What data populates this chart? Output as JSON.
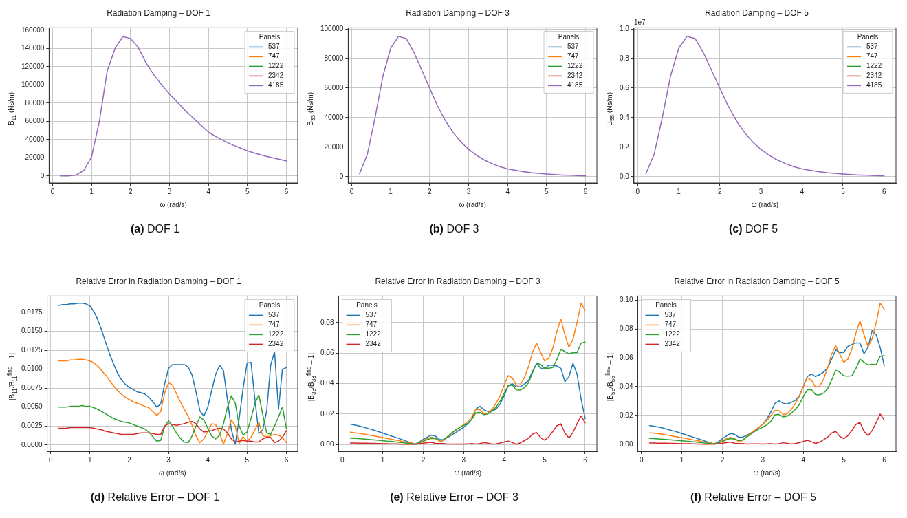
{
  "chart_data": [
    {
      "type": "line",
      "title": "Radiation Damping – DOF 1",
      "xlabel": "ω (rad/s)",
      "ylabel": "B$_{11}$ (Ns/m)",
      "legend_title": "Panels",
      "legend": "top right",
      "grid": true,
      "xlim": [
        -0.09,
        6.29
      ],
      "xticks": [
        0,
        1,
        2,
        3,
        4,
        5,
        6
      ],
      "ylim": [
        -7700,
        162700
      ],
      "yticks": [
        0,
        20000,
        40000,
        60000,
        80000,
        100000,
        120000,
        140000,
        160000
      ],
      "annotations": [
        "(a) DOF 1"
      ],
      "x": [
        0.2,
        0.4,
        0.6,
        0.8,
        1.0,
        1.2,
        1.4,
        1.6,
        1.8,
        2.0,
        2.2,
        2.4,
        2.6,
        2.8,
        3.0,
        3.2,
        3.4,
        3.6,
        3.8,
        4.0,
        4.2,
        4.4,
        4.6,
        4.8,
        5.0,
        5.2,
        5.4,
        5.6,
        5.8,
        6.0
      ],
      "series": [
        {
          "name": "537",
          "color": "#1f77b4",
          "values": [
            null,
            null,
            null,
            null,
            null,
            null,
            null,
            null,
            null,
            null,
            null,
            null,
            null,
            null,
            null,
            null,
            null,
            null,
            null,
            null,
            null,
            null,
            null,
            null,
            null,
            null,
            null,
            null,
            null,
            null
          ]
        },
        {
          "name": "747",
          "color": "#ff7f0e",
          "values": [
            null,
            null,
            null,
            null,
            null,
            null,
            null,
            null,
            null,
            null,
            null,
            null,
            null,
            null,
            null,
            null,
            null,
            null,
            null,
            null,
            null,
            null,
            null,
            null,
            null,
            null,
            null,
            null,
            null,
            null
          ]
        },
        {
          "name": "1222",
          "color": "#2ca02c",
          "values": [
            null,
            null,
            null,
            null,
            null,
            null,
            null,
            null,
            null,
            null,
            null,
            null,
            null,
            null,
            null,
            null,
            null,
            null,
            null,
            null,
            null,
            null,
            null,
            null,
            null,
            null,
            null,
            null,
            null,
            null
          ]
        },
        {
          "name": "2342",
          "color": "#d62728",
          "values": [
            null,
            null,
            null,
            null,
            null,
            null,
            null,
            null,
            null,
            null,
            null,
            null,
            null,
            null,
            null,
            null,
            null,
            null,
            null,
            null,
            null,
            null,
            null,
            null,
            null,
            null,
            null,
            null,
            null,
            null
          ]
        },
        {
          "name": "4185",
          "color": "#9467bd",
          "values": [
            0,
            100,
            1000,
            6000,
            21000,
            60000,
            115000,
            140000,
            153000,
            151000,
            141000,
            124000,
            111000,
            100000,
            90000,
            81000,
            72000,
            64000,
            56000,
            48000,
            43000,
            38500,
            34500,
            31000,
            27500,
            25000,
            22500,
            20500,
            18500,
            16500
          ]
        }
      ]
    },
    {
      "type": "line",
      "title": "Radiation Damping – DOF 3",
      "xlabel": "ω (rad/s)",
      "ylabel": "B$_{33}$ (Ns/m)",
      "legend_title": "Panels",
      "legend": "top right",
      "grid": true,
      "xlim": [
        -0.09,
        6.29
      ],
      "xticks": [
        0,
        1,
        2,
        3,
        4,
        5,
        6
      ],
      "ylim": [
        -4300,
        100800
      ],
      "yticks": [
        0,
        20000,
        40000,
        60000,
        80000,
        100000
      ],
      "annotations": [
        "(b) DOF 3"
      ],
      "x": [
        0.2,
        0.4,
        0.6,
        0.8,
        1.0,
        1.2,
        1.4,
        1.6,
        1.8,
        2.0,
        2.2,
        2.4,
        2.6,
        2.8,
        3.0,
        3.2,
        3.4,
        3.6,
        3.8,
        4.0,
        4.2,
        4.4,
        4.6,
        4.8,
        5.0,
        5.2,
        5.4,
        5.6,
        5.8,
        6.0
      ],
      "series": [
        {
          "name": "537",
          "color": "#1f77b4",
          "values": [
            null,
            null,
            null,
            null,
            null,
            null,
            null,
            null,
            null,
            null,
            null,
            null,
            null,
            null,
            null,
            null,
            null,
            null,
            null,
            null,
            null,
            null,
            null,
            null,
            null,
            null,
            null,
            null,
            null,
            null
          ]
        },
        {
          "name": "747",
          "color": "#ff7f0e",
          "values": [
            null,
            null,
            null,
            null,
            null,
            null,
            null,
            null,
            null,
            null,
            null,
            null,
            null,
            null,
            null,
            null,
            null,
            null,
            null,
            null,
            null,
            null,
            null,
            null,
            null,
            null,
            null,
            null,
            null,
            null
          ]
        },
        {
          "name": "1222",
          "color": "#2ca02c",
          "values": [
            null,
            null,
            null,
            null,
            null,
            null,
            null,
            null,
            null,
            null,
            null,
            null,
            null,
            null,
            null,
            null,
            null,
            null,
            null,
            null,
            null,
            null,
            null,
            null,
            null,
            null,
            null,
            null,
            null,
            null
          ]
        },
        {
          "name": "2342",
          "color": "#d62728",
          "values": [
            null,
            null,
            null,
            null,
            null,
            null,
            null,
            null,
            null,
            null,
            null,
            null,
            null,
            null,
            null,
            null,
            null,
            null,
            null,
            null,
            null,
            null,
            null,
            null,
            null,
            null,
            null,
            null,
            null,
            null
          ]
        },
        {
          "name": "4185",
          "color": "#9467bd",
          "values": [
            2000,
            15000,
            40000,
            68000,
            87000,
            95000,
            93500,
            84000,
            72000,
            60000,
            48000,
            38000,
            30000,
            23500,
            18500,
            14500,
            11300,
            8800,
            6800,
            5300,
            4300,
            3400,
            2700,
            2200,
            1800,
            1400,
            1100,
            900,
            700,
            500
          ]
        }
      ]
    },
    {
      "type": "line",
      "title": "Radiation Damping – DOF 5",
      "xlabel": "ω (rad/s)",
      "ylabel": "B$_{55}$ (Ns/m)",
      "legend_title": "Panels",
      "legend": "top right",
      "grid": true,
      "xlim": [
        -0.09,
        6.29
      ],
      "xticks": [
        0,
        1,
        2,
        3,
        4,
        5,
        6
      ],
      "ylim": [
        -0.043,
        1.008
      ],
      "yticks": [
        {
          "value": 0,
          "label": "0.0"
        },
        {
          "value": 0.2,
          "label": "0.2"
        },
        {
          "value": 0.4,
          "label": "0.4"
        },
        {
          "value": 0.6,
          "label": "0.6"
        },
        {
          "value": 0.8,
          "label": "0.8"
        },
        {
          "value": 1.0,
          "label": "1.0"
        }
      ],
      "annotations": [
        "1e7",
        "(c) DOF 5"
      ],
      "x": [
        0.2,
        0.4,
        0.6,
        0.8,
        1.0,
        1.2,
        1.4,
        1.6,
        1.8,
        2.0,
        2.2,
        2.4,
        2.6,
        2.8,
        3.0,
        3.2,
        3.4,
        3.6,
        3.8,
        4.0,
        4.2,
        4.4,
        4.6,
        4.8,
        5.0,
        5.2,
        5.4,
        5.6,
        5.8,
        6.0
      ],
      "series": [
        {
          "name": "537",
          "color": "#1f77b4",
          "values": [
            null,
            null,
            null,
            null,
            null,
            null,
            null,
            null,
            null,
            null,
            null,
            null,
            null,
            null,
            null,
            null,
            null,
            null,
            null,
            null,
            null,
            null,
            null,
            null,
            null,
            null,
            null,
            null,
            null,
            null
          ]
        },
        {
          "name": "747",
          "color": "#ff7f0e",
          "values": [
            null,
            null,
            null,
            null,
            null,
            null,
            null,
            null,
            null,
            null,
            null,
            null,
            null,
            null,
            null,
            null,
            null,
            null,
            null,
            null,
            null,
            null,
            null,
            null,
            null,
            null,
            null,
            null,
            null,
            null
          ]
        },
        {
          "name": "1222",
          "color": "#2ca02c",
          "values": [
            null,
            null,
            null,
            null,
            null,
            null,
            null,
            null,
            null,
            null,
            null,
            null,
            null,
            null,
            null,
            null,
            null,
            null,
            null,
            null,
            null,
            null,
            null,
            null,
            null,
            null,
            null,
            null,
            null,
            null
          ]
        },
        {
          "name": "2342",
          "color": "#d62728",
          "values": [
            null,
            null,
            null,
            null,
            null,
            null,
            null,
            null,
            null,
            null,
            null,
            null,
            null,
            null,
            null,
            null,
            null,
            null,
            null,
            null,
            null,
            null,
            null,
            null,
            null,
            null,
            null,
            null,
            null,
            null
          ]
        },
        {
          "name": "4185",
          "color": "#9467bd",
          "values": [
            0.02,
            0.15,
            0.4,
            0.68,
            0.87,
            0.95,
            0.935,
            0.84,
            0.72,
            0.6,
            0.48,
            0.38,
            0.3,
            0.235,
            0.185,
            0.145,
            0.113,
            0.088,
            0.068,
            0.053,
            0.043,
            0.034,
            0.027,
            0.022,
            0.018,
            0.014,
            0.011,
            0.009,
            0.007,
            0.005
          ]
        }
      ]
    },
    {
      "type": "line",
      "title": "Relative Error in Radiation Damping – DOF 1",
      "xlabel": "ω (rad/s)",
      "ylabel": "|B$_{11}$/B$_{11}$$^{fine}$ − 1|",
      "legend_title": "Panels",
      "legend": "top right",
      "grid": true,
      "xlim": [
        -0.09,
        6.29
      ],
      "xticks": [
        0,
        1,
        2,
        3,
        4,
        5,
        6
      ],
      "ylim": [
        -0.00083,
        0.01963
      ],
      "yticks": [
        {
          "value": 0,
          "label": "0.0000"
        },
        {
          "value": 0.0025,
          "label": "0.0025"
        },
        {
          "value": 0.005,
          "label": "0.0050"
        },
        {
          "value": 0.0075,
          "label": "0.0075"
        },
        {
          "value": 0.01,
          "label": "0.0100"
        },
        {
          "value": 0.0125,
          "label": "0.0125"
        },
        {
          "value": 0.015,
          "label": "0.0150"
        },
        {
          "value": 0.0175,
          "label": "0.0175"
        }
      ],
      "annotations": [
        "(d) Relative Error – DOF 1"
      ],
      "x": [
        0.2,
        0.3,
        0.4,
        0.5,
        0.6,
        0.7,
        0.8,
        0.9,
        1.0,
        1.1,
        1.2,
        1.3,
        1.4,
        1.5,
        1.6,
        1.7,
        1.8,
        1.9,
        2.0,
        2.1,
        2.2,
        2.3,
        2.4,
        2.5,
        2.6,
        2.7,
        2.8,
        2.9,
        3.0,
        3.1,
        3.2,
        3.3,
        3.4,
        3.5,
        3.6,
        3.7,
        3.8,
        3.9,
        4.0,
        4.1,
        4.2,
        4.3,
        4.4,
        4.5,
        4.6,
        4.7,
        4.8,
        4.9,
        5.0,
        5.1,
        5.2,
        5.3,
        5.4,
        5.5,
        5.6,
        5.7,
        5.8,
        5.9,
        6.0
      ],
      "series": [
        {
          "name": "537",
          "color": "#1f77b4",
          "values": [
            0.0184,
            0.0185,
            0.0185,
            0.0186,
            0.0186,
            0.0187,
            0.0187,
            0.0186,
            0.0183,
            0.0176,
            0.0165,
            0.0151,
            0.0135,
            0.012,
            0.0107,
            0.0095,
            0.0086,
            0.008,
            0.0076,
            0.0073,
            0.007,
            0.0069,
            0.0067,
            0.0063,
            0.0057,
            0.005,
            0.0054,
            0.008,
            0.0101,
            0.0106,
            0.0106,
            0.0106,
            0.0106,
            0.0103,
            0.0092,
            0.007,
            0.0045,
            0.0038,
            0.005,
            0.0072,
            0.0093,
            0.0105,
            0.0098,
            0.006,
            0.002,
            0.0001,
            0.0035,
            0.0075,
            0.0108,
            0.0109,
            0.006,
            0.0015,
            0.002,
            0.0045,
            0.0105,
            0.0123,
            0.0047,
            0.01,
            0.0102
          ]
        },
        {
          "name": "747",
          "color": "#ff7f0e",
          "values": [
            0.0111,
            0.0111,
            0.0111,
            0.0112,
            0.0112,
            0.0113,
            0.0113,
            0.0112,
            0.0111,
            0.0108,
            0.0104,
            0.0098,
            0.0092,
            0.0085,
            0.0078,
            0.0072,
            0.0067,
            0.0063,
            0.006,
            0.0057,
            0.0055,
            0.0053,
            0.0051,
            0.0049,
            0.0044,
            0.0039,
            0.0044,
            0.0068,
            0.0082,
            0.0079,
            0.0068,
            0.0057,
            0.0047,
            0.0038,
            0.0026,
            0.0012,
            0.0003,
            0.0008,
            0.0018,
            0.0028,
            0.0027,
            0.0015,
            0.0001,
            0.0015,
            0.0033,
            0.0025,
            0.0002,
            0.0011,
            0.0005,
            0.001,
            0.002,
            0.003,
            0.0012,
            0.0011,
            0.0012,
            0.0014,
            0.0013,
            0.001,
            0.0003
          ]
        },
        {
          "name": "1222",
          "color": "#2ca02c",
          "values": [
            0.005,
            0.005,
            0.005,
            0.0051,
            0.0051,
            0.0051,
            0.0052,
            0.0051,
            0.0051,
            0.0049,
            0.0047,
            0.0044,
            0.0041,
            0.0038,
            0.0035,
            0.0033,
            0.0031,
            0.003,
            0.0029,
            0.0027,
            0.0025,
            0.0023,
            0.0021,
            0.0017,
            0.0011,
            0.0005,
            0.0006,
            0.0024,
            0.0032,
            0.0025,
            0.0016,
            0.0009,
            0.0004,
            0.0003,
            0.0012,
            0.0025,
            0.0037,
            0.0033,
            0.0022,
            0.0012,
            0.0008,
            0.0013,
            0.0028,
            0.005,
            0.0065,
            0.0055,
            0.0025,
            0.0013,
            0.0017,
            0.0035,
            0.0055,
            0.0066,
            0.004,
            0.0016,
            0.0014,
            0.0025,
            0.0037,
            0.005,
            0.0022
          ]
        },
        {
          "name": "2342",
          "color": "#d62728",
          "values": [
            0.0022,
            0.0022,
            0.0022,
            0.0023,
            0.0023,
            0.0023,
            0.0023,
            0.0023,
            0.0023,
            0.0022,
            0.0021,
            0.002,
            0.0018,
            0.0017,
            0.0016,
            0.0015,
            0.0014,
            0.0014,
            0.0014,
            0.0014,
            0.0015,
            0.0016,
            0.0016,
            0.0016,
            0.0015,
            0.0014,
            0.0014,
            0.0025,
            0.0028,
            0.0027,
            0.0026,
            0.0027,
            0.0028,
            0.003,
            0.0031,
            0.0028,
            0.0021,
            0.0017,
            0.0018,
            0.0019,
            0.0021,
            0.0022,
            0.0021,
            0.0016,
            0.0008,
            0.0004,
            0.0005,
            0.0006,
            0.0005,
            0.0005,
            0.0004,
            0.0004,
            0.0008,
            0.001,
            0.001,
            0.0003,
            0.0005,
            0.001,
            0.0019
          ]
        }
      ]
    },
    {
      "type": "line",
      "title": "Relative Error in Radiation Damping – DOF 3",
      "xlabel": "ω (rad/s)",
      "ylabel": "|B$_{33}$/B$_{33}$$^{fine}$ − 1|",
      "legend_title": "Panels",
      "legend": "top left",
      "grid": true,
      "xlim": [
        -0.09,
        6.29
      ],
      "xticks": [
        0,
        1,
        2,
        3,
        4,
        5,
        6
      ],
      "ylim": [
        -0.0045,
        0.0974
      ],
      "yticks": [
        {
          "value": 0,
          "label": "0.00"
        },
        {
          "value": 0.02,
          "label": "0.02"
        },
        {
          "value": 0.04,
          "label": "0.04"
        },
        {
          "value": 0.06,
          "label": "0.06"
        },
        {
          "value": 0.08,
          "label": "0.08"
        }
      ],
      "annotations": [
        "(e) Relative Error – DOF 3"
      ],
      "x": [
        0.2,
        0.3,
        0.4,
        0.5,
        0.6,
        0.7,
        0.8,
        0.9,
        1.0,
        1.1,
        1.2,
        1.3,
        1.4,
        1.5,
        1.6,
        1.7,
        1.8,
        1.9,
        2.0,
        2.1,
        2.2,
        2.3,
        2.4,
        2.5,
        2.6,
        2.7,
        2.8,
        2.9,
        3.0,
        3.1,
        3.2,
        3.3,
        3.4,
        3.5,
        3.6,
        3.7,
        3.8,
        3.9,
        4.0,
        4.1,
        4.2,
        4.3,
        4.4,
        4.5,
        4.6,
        4.7,
        4.8,
        4.9,
        5.0,
        5.1,
        5.2,
        5.3,
        5.4,
        5.5,
        5.6,
        5.7,
        5.8,
        5.9,
        6.0
      ],
      "series": [
        {
          "name": "537",
          "color": "#1f77b4",
          "values": [
            0.0133,
            0.0128,
            0.0122,
            0.0115,
            0.0108,
            0.01,
            0.0092,
            0.0084,
            0.0075,
            0.0066,
            0.0057,
            0.0048,
            0.0039,
            0.003,
            0.002,
            0.0011,
            0.0002,
            0.0015,
            0.0033,
            0.0048,
            0.0061,
            0.0055,
            0.0033,
            0.0031,
            0.0045,
            0.0062,
            0.0078,
            0.0095,
            0.0113,
            0.0135,
            0.0165,
            0.0232,
            0.025,
            0.0228,
            0.0215,
            0.0218,
            0.0232,
            0.0265,
            0.032,
            0.0385,
            0.0398,
            0.0378,
            0.038,
            0.0395,
            0.042,
            0.048,
            0.053,
            0.0502,
            0.0495,
            0.0522,
            0.052,
            0.0515,
            0.05,
            0.0412,
            0.0445,
            0.0533,
            0.0462,
            0.03,
            0.017
          ]
        },
        {
          "name": "747",
          "color": "#ff7f0e",
          "values": [
            0.008,
            0.0077,
            0.0073,
            0.0069,
            0.0065,
            0.006,
            0.0055,
            0.005,
            0.0045,
            0.004,
            0.0035,
            0.003,
            0.0025,
            0.0019,
            0.0014,
            0.0008,
            0.0002,
            0.0012,
            0.0025,
            0.0038,
            0.0048,
            0.004,
            0.0022,
            0.0024,
            0.005,
            0.0072,
            0.0092,
            0.0112,
            0.013,
            0.015,
            0.018,
            0.023,
            0.0228,
            0.02,
            0.0205,
            0.023,
            0.027,
            0.032,
            0.039,
            0.0452,
            0.0438,
            0.0388,
            0.0392,
            0.044,
            0.051,
            0.0605,
            0.0665,
            0.0605,
            0.0548,
            0.0565,
            0.063,
            0.074,
            0.0823,
            0.072,
            0.0638,
            0.069,
            0.08,
            0.0928,
            0.088
          ]
        },
        {
          "name": "1222",
          "color": "#2ca02c",
          "values": [
            0.0041,
            0.004,
            0.0038,
            0.0036,
            0.0034,
            0.0032,
            0.003,
            0.0027,
            0.0025,
            0.0022,
            0.002,
            0.0017,
            0.0014,
            0.0011,
            0.0008,
            0.0005,
            0.0002,
            0.001,
            0.002,
            0.0032,
            0.004,
            0.0038,
            0.0028,
            0.003,
            0.0052,
            0.0075,
            0.0095,
            0.011,
            0.0125,
            0.014,
            0.0165,
            0.0208,
            0.021,
            0.0195,
            0.02,
            0.022,
            0.0245,
            0.0285,
            0.0335,
            0.0385,
            0.039,
            0.0358,
            0.0357,
            0.0372,
            0.0405,
            0.047,
            0.0533,
            0.0525,
            0.05,
            0.05,
            0.0505,
            0.0555,
            0.0625,
            0.061,
            0.0595,
            0.0603,
            0.0603,
            0.0665,
            0.0672
          ]
        },
        {
          "name": "2342",
          "color": "#d62728",
          "values": [
            0.0009,
            0.0009,
            0.0008,
            0.0008,
            0.0008,
            0.0007,
            0.0007,
            0.0006,
            0.0005,
            0.0005,
            0.0004,
            0.0003,
            0.0002,
            0.0001,
            0.0001,
            0.0001,
            0.0001,
            0.0005,
            0.0008,
            0.0011,
            0.0014,
            0.0007,
            0.0006,
            0.0006,
            0.0002,
            0.0002,
            0.0002,
            0.0002,
            0.0002,
            0.0003,
            0.0006,
            0.0003,
            0.0006,
            0.0012,
            0.0008,
            0.0002,
            0.0004,
            0.0009,
            0.0016,
            0.0022,
            0.0012,
            0.0001,
            0.001,
            0.0025,
            0.004,
            0.0068,
            0.0078,
            0.0045,
            0.0028,
            0.005,
            0.0085,
            0.0122,
            0.0135,
            0.0075,
            0.0042,
            0.008,
            0.0135,
            0.0188,
            0.0142
          ]
        }
      ]
    },
    {
      "type": "line",
      "title": "Relative Error in Radiation Damping – DOF 5",
      "xlabel": "ω (rad/s)",
      "ylabel": "|B$_{55}$/B$_{55}$$^{fine}$ − 1|",
      "legend_title": "Panels",
      "legend": "top left",
      "grid": true,
      "xlim": [
        -0.09,
        6.29
      ],
      "xticks": [
        0,
        1,
        2,
        3,
        4,
        5,
        6
      ],
      "ylim": [
        -0.0048,
        0.1027
      ],
      "yticks": [
        {
          "value": 0,
          "label": "0.00"
        },
        {
          "value": 0.02,
          "label": "0.02"
        },
        {
          "value": 0.04,
          "label": "0.04"
        },
        {
          "value": 0.06,
          "label": "0.06"
        },
        {
          "value": 0.08,
          "label": "0.08"
        },
        {
          "value": 0.1,
          "label": "0.10"
        }
      ],
      "annotations": [
        "(f) Relative Error – DOF 5"
      ],
      "x": [
        0.2,
        0.3,
        0.4,
        0.5,
        0.6,
        0.7,
        0.8,
        0.9,
        1.0,
        1.1,
        1.2,
        1.3,
        1.4,
        1.5,
        1.6,
        1.7,
        1.8,
        1.9,
        2.0,
        2.1,
        2.2,
        2.3,
        2.4,
        2.5,
        2.6,
        2.7,
        2.8,
        2.9,
        3.0,
        3.1,
        3.2,
        3.3,
        3.4,
        3.5,
        3.6,
        3.7,
        3.8,
        3.9,
        4.0,
        4.1,
        4.2,
        4.3,
        4.4,
        4.5,
        4.6,
        4.7,
        4.8,
        4.9,
        5.0,
        5.1,
        5.2,
        5.3,
        5.4,
        5.5,
        5.6,
        5.7,
        5.8,
        5.9,
        6.0
      ],
      "series": [
        {
          "name": "537",
          "color": "#1f77b4",
          "values": [
            0.013,
            0.0126,
            0.0121,
            0.0115,
            0.0108,
            0.01,
            0.0092,
            0.0084,
            0.0075,
            0.0066,
            0.0057,
            0.0048,
            0.0039,
            0.003,
            0.002,
            0.0011,
            0.0003,
            0.0018,
            0.0038,
            0.0058,
            0.0075,
            0.007,
            0.005,
            0.005,
            0.0062,
            0.0078,
            0.0095,
            0.0115,
            0.014,
            0.0175,
            0.0225,
            0.0285,
            0.0302,
            0.0285,
            0.028,
            0.029,
            0.0305,
            0.0335,
            0.04,
            0.047,
            0.0487,
            0.047,
            0.0482,
            0.05,
            0.053,
            0.059,
            0.0655,
            0.0635,
            0.0637,
            0.0678,
            0.0692,
            0.0703,
            0.0702,
            0.0628,
            0.0672,
            0.0787,
            0.076,
            0.067,
            0.0545
          ]
        },
        {
          "name": "747",
          "color": "#ff7f0e",
          "values": [
            0.008,
            0.0078,
            0.0075,
            0.0071,
            0.0066,
            0.0061,
            0.0056,
            0.0051,
            0.0046,
            0.0041,
            0.0035,
            0.003,
            0.0025,
            0.0019,
            0.0014,
            0.0008,
            0.0002,
            0.0012,
            0.0025,
            0.0038,
            0.0048,
            0.004,
            0.0022,
            0.0026,
            0.0055,
            0.0078,
            0.0098,
            0.0118,
            0.014,
            0.0165,
            0.02,
            0.0235,
            0.0233,
            0.0207,
            0.021,
            0.024,
            0.028,
            0.033,
            0.04,
            0.0462,
            0.0445,
            0.0398,
            0.0402,
            0.045,
            0.053,
            0.0625,
            0.0683,
            0.0625,
            0.0568,
            0.059,
            0.066,
            0.077,
            0.0855,
            0.076,
            0.0678,
            0.073,
            0.084,
            0.0978,
            0.0935
          ]
        },
        {
          "name": "1222",
          "color": "#2ca02c",
          "values": [
            0.0041,
            0.004,
            0.0038,
            0.0036,
            0.0034,
            0.0032,
            0.003,
            0.0027,
            0.0025,
            0.0022,
            0.002,
            0.0017,
            0.0014,
            0.0011,
            0.0008,
            0.0005,
            0.0002,
            0.001,
            0.002,
            0.0032,
            0.004,
            0.0037,
            0.0026,
            0.003,
            0.005,
            0.007,
            0.009,
            0.0105,
            0.012,
            0.0135,
            0.016,
            0.0205,
            0.0208,
            0.019,
            0.0195,
            0.0215,
            0.024,
            0.0275,
            0.033,
            0.0378,
            0.0378,
            0.0345,
            0.0343,
            0.0355,
            0.0385,
            0.0445,
            0.0513,
            0.05,
            0.0475,
            0.0472,
            0.0475,
            0.0525,
            0.059,
            0.057,
            0.055,
            0.0555,
            0.0553,
            0.061,
            0.0615
          ]
        },
        {
          "name": "2342",
          "color": "#d62728",
          "values": [
            0.0009,
            0.0009,
            0.0008,
            0.0008,
            0.0008,
            0.0007,
            0.0007,
            0.0006,
            0.0005,
            0.0005,
            0.0004,
            0.0003,
            0.0002,
            0.0001,
            0.0001,
            0.0001,
            0.0001,
            0.0005,
            0.0008,
            0.0012,
            0.0016,
            0.0008,
            0.0006,
            0.0006,
            0.0002,
            0.0003,
            0.0003,
            0.0003,
            0.0002,
            0.0003,
            0.0004,
            0.0002,
            0.0005,
            0.0011,
            0.0007,
            0.0002,
            0.0006,
            0.0012,
            0.002,
            0.0028,
            0.0018,
            0.0007,
            0.0015,
            0.0032,
            0.005,
            0.0078,
            0.009,
            0.0055,
            0.004,
            0.006,
            0.0095,
            0.0138,
            0.0152,
            0.009,
            0.006,
            0.0095,
            0.015,
            0.021,
            0.0168
          ]
        }
      ]
    }
  ]
}
